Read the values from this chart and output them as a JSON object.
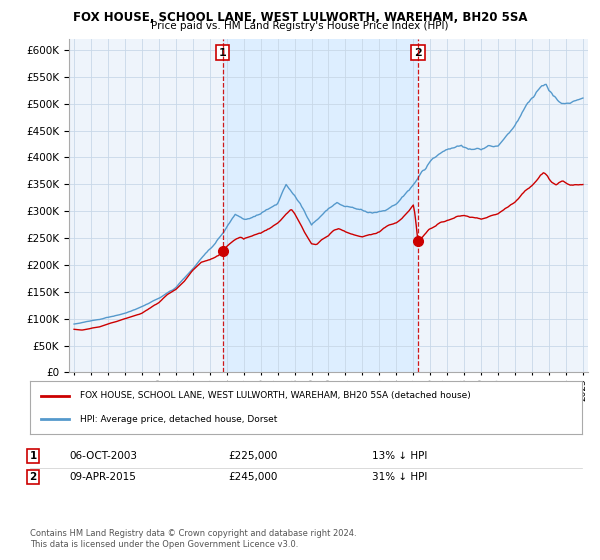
{
  "title": "FOX HOUSE, SCHOOL LANE, WEST LULWORTH, WAREHAM, BH20 5SA",
  "subtitle": "Price paid vs. HM Land Registry's House Price Index (HPI)",
  "legend_line1": "FOX HOUSE, SCHOOL LANE, WEST LULWORTH, WAREHAM, BH20 5SA (detached house)",
  "legend_line2": "HPI: Average price, detached house, Dorset",
  "footnote": "Contains HM Land Registry data © Crown copyright and database right 2024.\nThis data is licensed under the Open Government Licence v3.0.",
  "purchase1_date": "06-OCT-2003",
  "purchase1_price": 225000,
  "purchase1_text": "13% ↓ HPI",
  "purchase2_date": "09-APR-2015",
  "purchase2_price": 245000,
  "purchase2_text": "31% ↓ HPI",
  "purchase1_x": 2003.76,
  "purchase2_x": 2015.27,
  "red_color": "#cc0000",
  "blue_color": "#5599cc",
  "shade_color": "#ddeeff",
  "plot_bg": "#eef4fb",
  "ylim": [
    0,
    620000
  ],
  "xlim_start": 1994.7,
  "xlim_end": 2025.3
}
